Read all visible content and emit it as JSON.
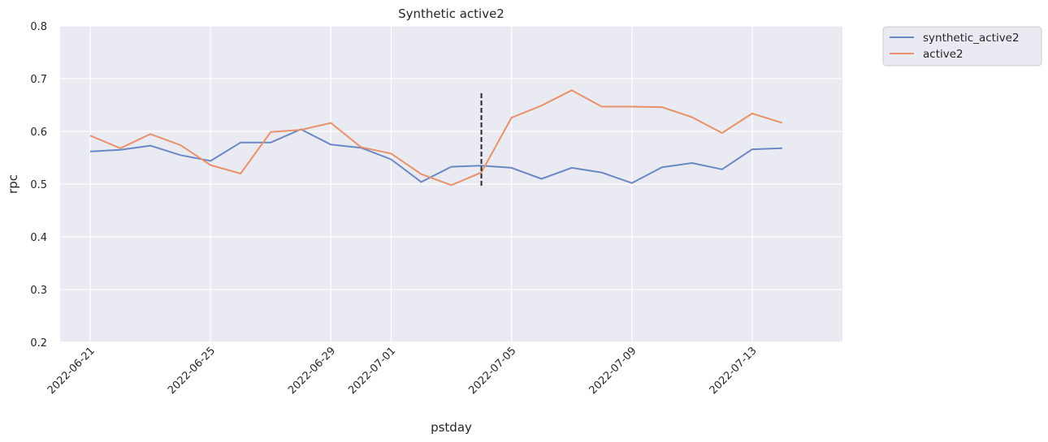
{
  "chart_data": {
    "type": "line",
    "title": "Synthetic active2",
    "xlabel": "pstday",
    "ylabel": "rpc",
    "ylim": [
      0.2,
      0.8
    ],
    "yticks": [
      "0.2",
      "0.3",
      "0.4",
      "0.5",
      "0.6",
      "0.7",
      "0.8"
    ],
    "xlim": [
      "2022-06-20",
      "2022-07-16"
    ],
    "xticks": [
      "2022-06-21",
      "2022-06-25",
      "2022-06-29",
      "2022-07-01",
      "2022-07-05",
      "2022-07-09",
      "2022-07-13"
    ],
    "grid": true,
    "legend_position": "outside-top-right",
    "x": [
      "2022-06-21",
      "2022-06-22",
      "2022-06-23",
      "2022-06-24",
      "2022-06-25",
      "2022-06-26",
      "2022-06-27",
      "2022-06-28",
      "2022-06-29",
      "2022-06-30",
      "2022-07-01",
      "2022-07-02",
      "2022-07-03",
      "2022-07-04",
      "2022-07-05",
      "2022-07-06",
      "2022-07-07",
      "2022-07-08",
      "2022-07-09",
      "2022-07-10",
      "2022-07-11",
      "2022-07-12",
      "2022-07-13",
      "2022-07-14"
    ],
    "series": [
      {
        "name": "synthetic_active2",
        "color": "#6a88c4",
        "values": [
          0.562,
          0.565,
          0.573,
          0.555,
          0.544,
          0.579,
          0.579,
          0.604,
          0.575,
          0.569,
          0.547,
          0.504,
          0.533,
          0.535,
          0.531,
          0.51,
          0.531,
          0.522,
          0.502,
          0.532,
          0.54,
          0.528,
          0.566,
          0.568
        ]
      },
      {
        "name": "active2",
        "color": "#e8916a",
        "values": [
          0.592,
          0.568,
          0.595,
          0.574,
          0.536,
          0.52,
          0.599,
          0.603,
          0.616,
          0.57,
          0.558,
          0.519,
          0.498,
          0.522,
          0.626,
          0.649,
          0.678,
          0.647,
          0.647,
          0.646,
          0.627,
          0.597,
          0.634,
          0.616
        ]
      }
    ],
    "annotations": [
      {
        "type": "vline",
        "style": "dashed",
        "color": "#262626",
        "x": "2022-07-04",
        "y_from": 0.497,
        "y_to": 0.677
      }
    ]
  }
}
